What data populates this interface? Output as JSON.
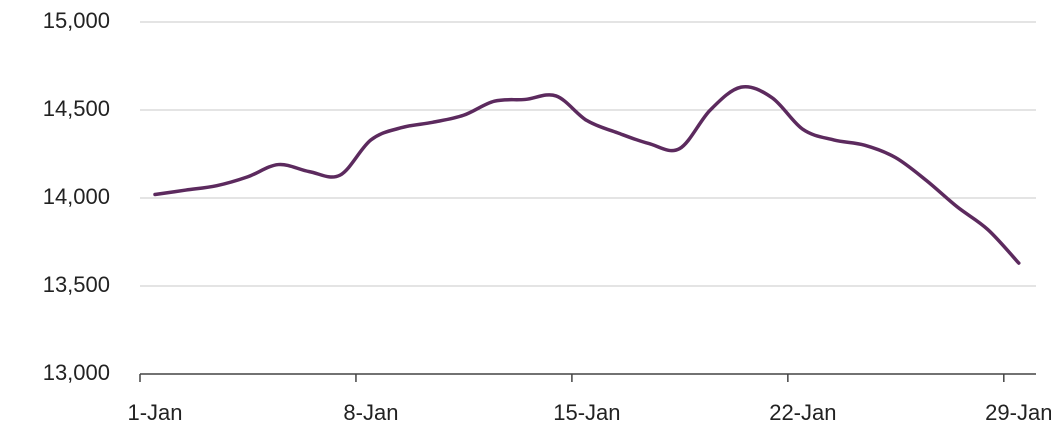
{
  "chart_data": {
    "type": "line",
    "categories": [
      "1-Jan",
      null,
      null,
      null,
      null,
      null,
      null,
      "8-Jan",
      null,
      null,
      null,
      null,
      null,
      null,
      "15-Jan",
      null,
      null,
      null,
      null,
      null,
      null,
      "22-Jan",
      null,
      null,
      null,
      null,
      null,
      null,
      "29-Jan"
    ],
    "series": [
      {
        "color": "#5c2a5e",
        "values": [
          14020,
          14045,
          14070,
          14120,
          14190,
          14150,
          14130,
          14330,
          14400,
          14430,
          14470,
          14550,
          14560,
          14580,
          14440,
          14370,
          14310,
          14280,
          14500,
          14630,
          14570,
          14390,
          14330,
          14300,
          14230,
          14100,
          13950,
          13820,
          13630
        ]
      }
    ],
    "ylim": [
      13000,
      15000
    ],
    "yticks": [
      {
        "value": 13000,
        "label": "13,000"
      },
      {
        "value": 13500,
        "label": "13,500"
      },
      {
        "value": 14000,
        "label": "14,000"
      },
      {
        "value": 14500,
        "label": "14,500"
      },
      {
        "value": 15000,
        "label": "15,000"
      }
    ],
    "grid": true
  }
}
